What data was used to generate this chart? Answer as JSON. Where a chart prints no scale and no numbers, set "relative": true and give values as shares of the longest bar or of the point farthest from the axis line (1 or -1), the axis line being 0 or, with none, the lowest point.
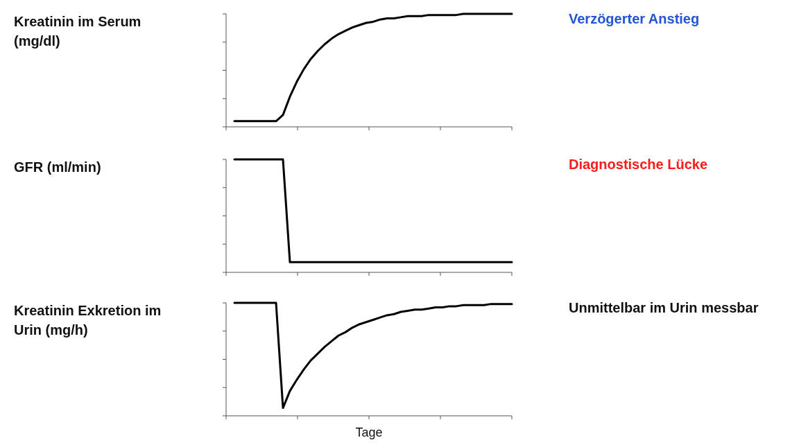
{
  "chart_data": [
    {
      "type": "line",
      "ylabel": "Kreatinin im Serum (mg/dl)",
      "annotations": [
        "Verzögerter Anstieg"
      ],
      "relative": true,
      "categories": [
        null,
        null,
        null,
        null,
        null,
        null,
        null,
        null,
        null,
        null,
        null,
        null,
        null,
        null,
        null,
        null,
        null,
        null,
        null,
        null,
        null,
        null,
        null,
        null,
        null,
        null,
        null,
        null,
        null,
        null,
        null,
        null,
        null,
        null,
        null,
        null,
        null,
        null,
        null,
        null,
        null
      ],
      "series": [
        {
          "color": "#000000",
          "values": [
            0.05,
            0.05,
            0.05,
            0.05,
            0.05,
            0.05,
            0.05,
            0.105,
            0.267,
            0.4,
            0.51,
            0.6,
            0.67,
            0.73,
            0.78,
            0.82,
            0.85,
            0.88,
            0.9,
            0.92,
            0.93,
            0.95,
            0.96,
            0.96,
            0.97,
            0.98,
            0.98,
            0.98,
            0.99,
            0.99,
            0.99,
            0.99,
            0.99,
            1,
            1,
            1,
            1,
            1,
            1,
            1,
            1
          ]
        }
      ]
    },
    {
      "type": "line",
      "ylabel": "GFR (ml/min)",
      "annotations": [
        "Diagnostische Lücke"
      ],
      "relative": true,
      "categories": [
        null,
        null,
        null,
        null,
        null,
        null,
        null,
        null,
        null,
        null,
        null,
        null,
        null,
        null,
        null,
        null,
        null,
        null,
        null,
        null,
        null,
        null,
        null,
        null,
        null,
        null,
        null,
        null,
        null,
        null,
        null,
        null,
        null,
        null,
        null,
        null,
        null,
        null,
        null,
        null,
        null
      ],
      "series": [
        {
          "color": "#000000",
          "values": [
            1,
            1,
            1,
            1,
            1,
            1,
            1,
            1,
            0.09,
            0.09,
            0.09,
            0.09,
            0.09,
            0.09,
            0.09,
            0.09,
            0.09,
            0.09,
            0.09,
            0.09,
            0.09,
            0.09,
            0.09,
            0.09,
            0.09,
            0.09,
            0.09,
            0.09,
            0.09,
            0.09,
            0.09,
            0.09,
            0.09,
            0.09,
            0.09,
            0.09,
            0.09,
            0.09,
            0.09,
            0.09,
            0.09
          ]
        }
      ]
    },
    {
      "type": "line",
      "ylabel": "Kreatinin Exkretion im Urin (mg/h)",
      "xlabel": "Tage",
      "annotations": [
        "Unmittelbar im Urin messbar"
      ],
      "relative": true,
      "categories": [
        null,
        null,
        null,
        null,
        null,
        null,
        null,
        null,
        null,
        null,
        null,
        null,
        null,
        null,
        null,
        null,
        null,
        null,
        null,
        null,
        null,
        null,
        null,
        null,
        null,
        null,
        null,
        null,
        null,
        null,
        null,
        null,
        null,
        null,
        null,
        null,
        null,
        null,
        null,
        null,
        null
      ],
      "series": [
        {
          "color": "#000000",
          "values": [
            1,
            1,
            1,
            1,
            1,
            1,
            1,
            0.07,
            0.22,
            0.32,
            0.41,
            0.49,
            0.55,
            0.61,
            0.66,
            0.71,
            0.74,
            0.78,
            0.81,
            0.83,
            0.85,
            0.87,
            0.89,
            0.9,
            0.92,
            0.93,
            0.94,
            0.94,
            0.95,
            0.96,
            0.96,
            0.97,
            0.97,
            0.98,
            0.98,
            0.98,
            0.98,
            0.99,
            0.99,
            0.99,
            0.99
          ]
        }
      ]
    }
  ]
}
